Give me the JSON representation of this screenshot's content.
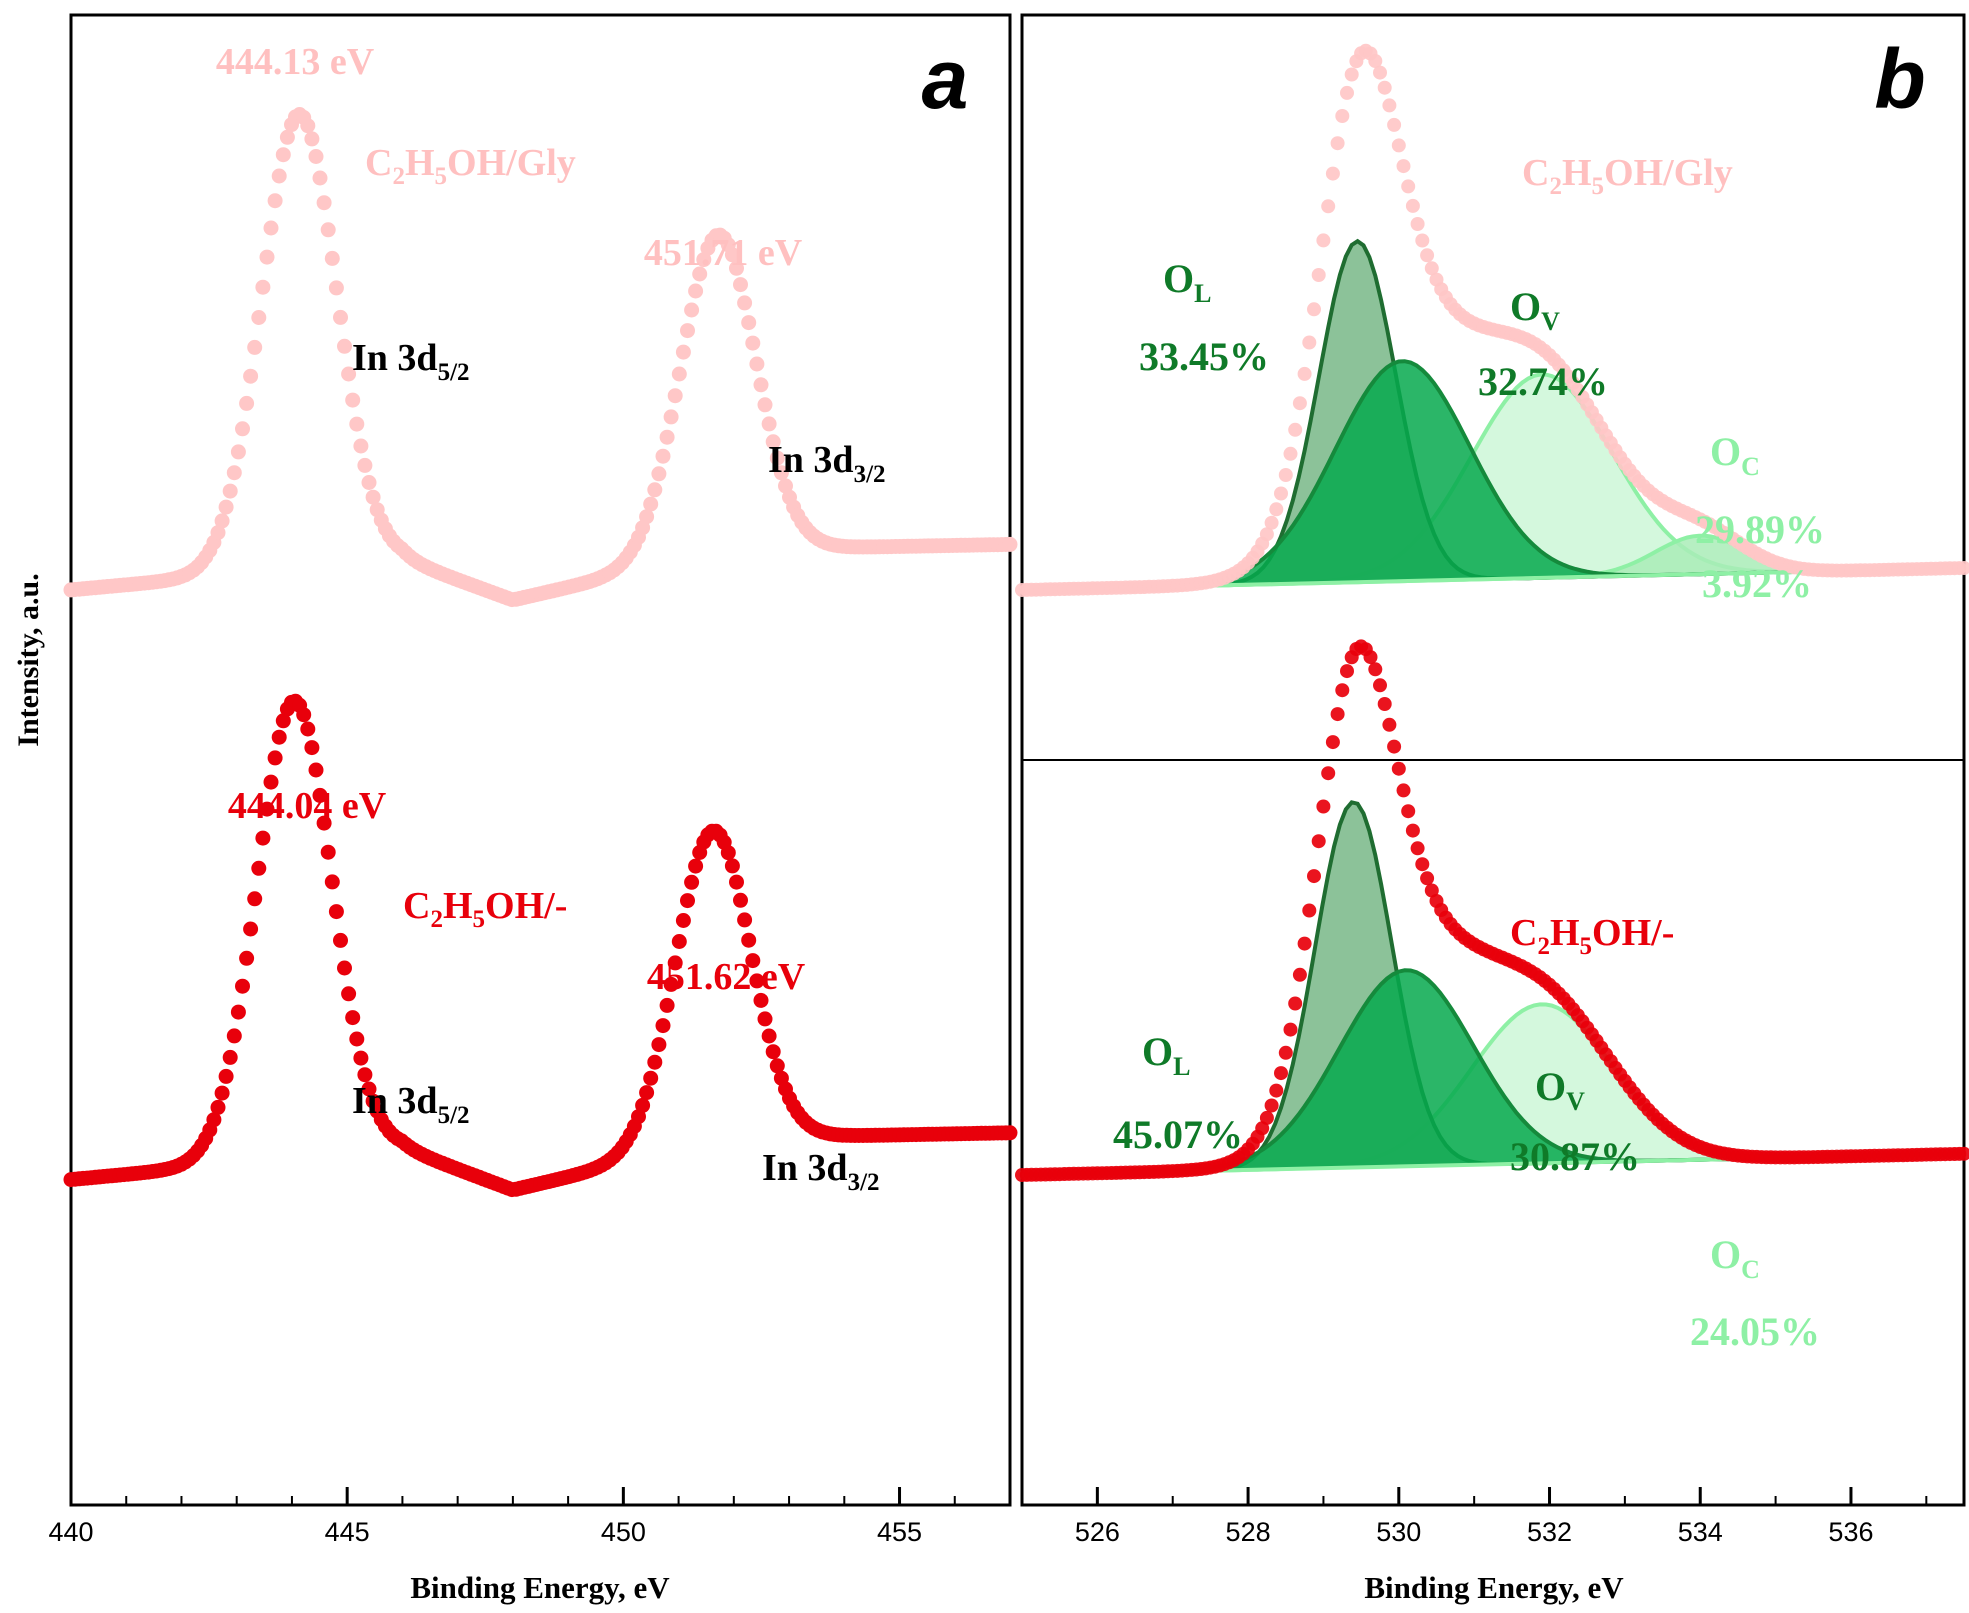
{
  "colors": {
    "gly_points": "#ffc7c7",
    "minus_points": "#e8000b",
    "peak_label_gly": "#ffc0c0",
    "peak_label_minus": "#e8000b",
    "ol_fill": "#86bf94",
    "ol_line": "#1f6d31",
    "ov_fill": "#06a94d",
    "ov_line": "#158a3c",
    "oc_fill": "#ccf7d7",
    "oc_line": "#8ef0a5",
    "oc2_fill": "#a9ecb7",
    "label_dark_green": "#0f7a28",
    "label_light_green": "#8ef0a5",
    "frame": "#000000"
  },
  "shared": {
    "ylabel": "Intensity, a.u.",
    "xlabel_a": "Binding Energy, eV",
    "xlabel_b": "Binding Energy, eV"
  },
  "panel_a": {
    "letter": "a",
    "gly": {
      "sample": "C",
      "sample_sub1": "2",
      "sample_mid": "H",
      "sample_sub2": "5",
      "sample_tail": "OH/Gly",
      "peak1_label": "444.13 eV",
      "peak2_label": "451.71 eV",
      "line1_main": "In 3d",
      "line1_sub": "5/2",
      "line2_main": "In 3d",
      "line2_sub": "3/2"
    },
    "minus": {
      "sample": "C",
      "sample_sub1": "2",
      "sample_mid": "H",
      "sample_sub2": "5",
      "sample_tail": "OH/-",
      "peak1_label": "444.04 eV",
      "peak2_label": "451.62 eV",
      "line1_main": "In 3d",
      "line1_sub": "5/2",
      "line2_main": "In 3d",
      "line2_sub": "3/2"
    }
  },
  "panel_b": {
    "letter": "b",
    "gly": {
      "sample": "C",
      "sample_sub1": "2",
      "sample_mid": "H",
      "sample_sub2": "5",
      "sample_tail": "OH/Gly",
      "ol_main": "O",
      "ol_sub": "L",
      "ol_pct": "33.45%",
      "ov_main": "O",
      "ov_sub": "V",
      "ov_pct": "32.74%",
      "oc_main": "O",
      "oc_sub": "C",
      "oc_pct": "29.89%",
      "extra_pct": "3.92%"
    },
    "minus": {
      "sample": "C",
      "sample_sub1": "2",
      "sample_mid": "H",
      "sample_sub2": "5",
      "sample_tail": "OH/-",
      "ol_main": "O",
      "ol_sub": "L",
      "ol_pct": "45.07%",
      "ov_main": "O",
      "ov_sub": "V",
      "ov_pct": "30.87%",
      "oc_main": "O",
      "oc_sub": "C",
      "oc_pct": "24.05%"
    }
  },
  "chart_data": [
    {
      "type": "scatter",
      "title": "a",
      "xlabel": "Binding Energy, eV",
      "ylabel": "Intensity, a.u.",
      "xlim": [
        440,
        457
      ],
      "xticks": [
        440,
        445,
        450,
        455
      ],
      "yticks": [],
      "grid": false,
      "series": [
        {
          "name": "C2H5OH/Gly",
          "model": "In 3d doublet, estimated from figure",
          "baseline": 0.09,
          "baseline_x": [
            440,
            446,
            448,
            452,
            457
          ],
          "baseline_y": [
            0.02,
            0.08,
            0.0,
            0.1,
            0.11
          ],
          "peaks": [
            {
              "name": "In 3d5/2",
              "center": 444.13,
              "height": 0.9,
              "fwhm": 1.6
            },
            {
              "name": "In 3d3/2",
              "center": 451.71,
              "height": 0.63,
              "fwhm": 1.6
            }
          ]
        },
        {
          "name": "C2H5OH/-",
          "model": "In 3d doublet, estimated from figure",
          "baseline_x": [
            440,
            446,
            448,
            452,
            457
          ],
          "baseline_y": [
            0.02,
            0.08,
            0.0,
            0.1,
            0.11
          ],
          "peaks": [
            {
              "name": "In 3d5/2",
              "center": 444.04,
              "height": 0.88,
              "fwhm": 1.6
            },
            {
              "name": "In 3d3/2",
              "center": 451.62,
              "height": 0.6,
              "fwhm": 1.6
            }
          ]
        }
      ]
    },
    {
      "type": "area",
      "title": "b",
      "xlabel": "Binding Energy, eV",
      "ylabel": "Intensity, a.u.",
      "xlim": [
        525,
        537.5
      ],
      "xticks": [
        526,
        528,
        530,
        532,
        534,
        536
      ],
      "yticks": [],
      "grid": false,
      "series": [
        {
          "name": "C2H5OH/Gly",
          "model": "O 1s deconvolution, estimated from figure",
          "baseline_x": [
            525,
            537.5
          ],
          "baseline_y": [
            0.0,
            0.04
          ],
          "components": [
            {
              "name": "OL",
              "percent": 33.45,
              "center": 529.45,
              "height": 0.62,
              "fwhm": 1.2
            },
            {
              "name": "OV",
              "percent": 32.74,
              "center": 530.05,
              "height": 0.4,
              "fwhm": 2.1
            },
            {
              "name": "OC",
              "percent": 29.89,
              "center": 531.9,
              "height": 0.37,
              "fwhm": 2.2
            },
            {
              "name": "extra",
              "percent": 3.92,
              "center": 534.0,
              "height": 0.07,
              "fwhm": 1.4
            }
          ]
        },
        {
          "name": "C2H5OH/-",
          "model": "O 1s deconvolution, estimated from figure",
          "baseline_x": [
            525,
            537.5
          ],
          "baseline_y": [
            0.0,
            0.04
          ],
          "components": [
            {
              "name": "OL",
              "percent": 45.07,
              "center": 529.4,
              "height": 0.69,
              "fwhm": 1.2
            },
            {
              "name": "OV",
              "percent": 30.87,
              "center": 530.1,
              "height": 0.37,
              "fwhm": 2.1
            },
            {
              "name": "OC",
              "percent": 24.05,
              "center": 531.9,
              "height": 0.3,
              "fwhm": 2.2
            }
          ]
        }
      ]
    }
  ]
}
